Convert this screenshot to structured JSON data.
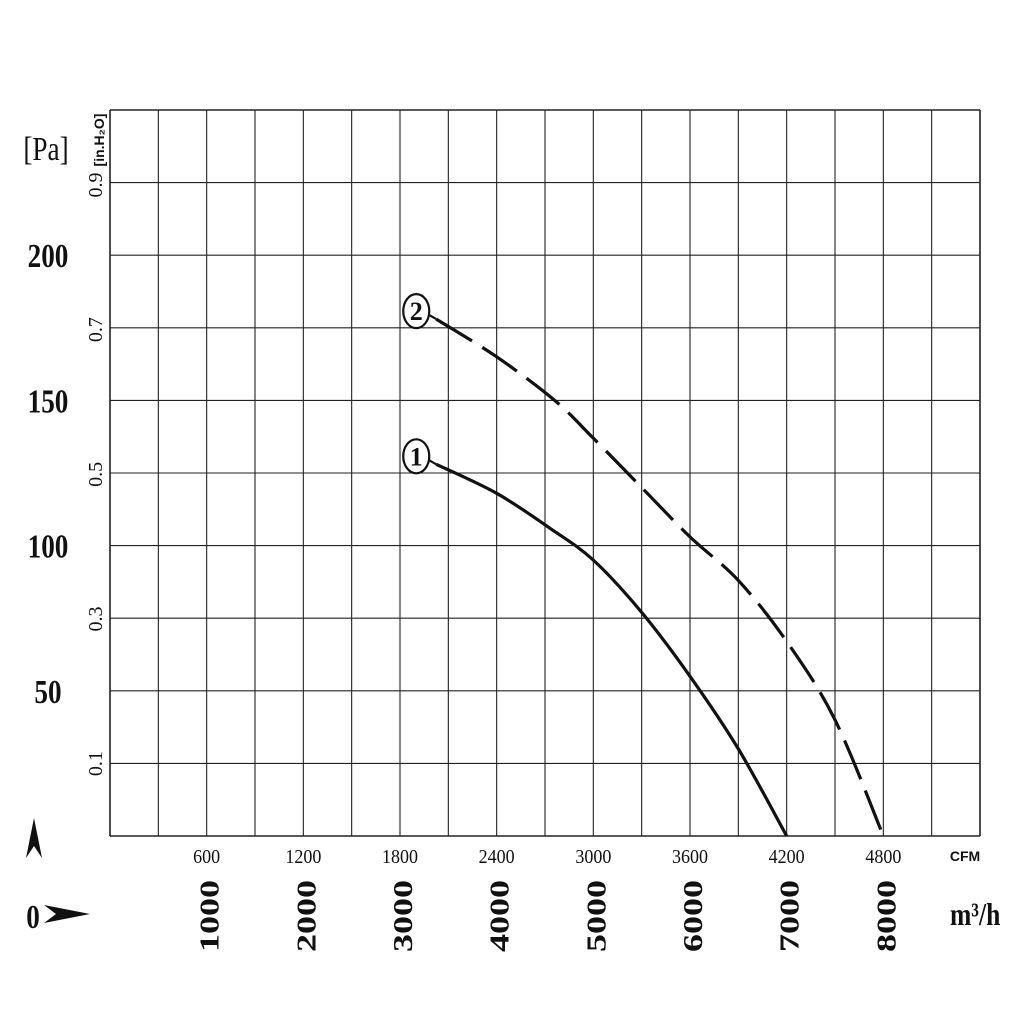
{
  "chart_data": {
    "type": "line",
    "title": "",
    "xlabel_top_unit": "CFM",
    "xlabel_bottom_unit": "m³/h",
    "ylabel_left_unit": "[Pa]",
    "ylabel_right_unit": "[in.H₂O]",
    "origin_label": "0",
    "x_cfm_ticks": [
      "600",
      "1200",
      "1800",
      "2400",
      "3000",
      "3600",
      "4200",
      "4800"
    ],
    "x_m3h_ticks": [
      "1000",
      "2000",
      "3000",
      "4000",
      "5000",
      "6000",
      "7000",
      "8000"
    ],
    "y_pa_ticks": [
      "50",
      "100",
      "150",
      "200"
    ],
    "y_inh2o_ticks": [
      "0.1",
      "0.3",
      "0.5",
      "0.7",
      "0.9"
    ],
    "xlim_m3h": [
      0,
      9000
    ],
    "ylim_pa": [
      0,
      250
    ],
    "grid": true,
    "series": [
      {
        "name": "1",
        "style": "solid",
        "color": "#111111",
        "points": [
          [
            3375,
            128
          ],
          [
            4000,
            118
          ],
          [
            4550,
            106
          ],
          [
            5000,
            95
          ],
          [
            5500,
            77
          ],
          [
            6000,
            55
          ],
          [
            6500,
            30
          ],
          [
            7000,
            0
          ]
        ]
      },
      {
        "name": "2",
        "style": "dashed",
        "color": "#111111",
        "points": [
          [
            3375,
            178
          ],
          [
            4000,
            165
          ],
          [
            4600,
            150
          ],
          [
            5000,
            137
          ],
          [
            5500,
            120
          ],
          [
            6000,
            103
          ],
          [
            6500,
            88
          ],
          [
            7000,
            67
          ],
          [
            7500,
            40
          ],
          [
            8000,
            0
          ]
        ]
      }
    ]
  }
}
